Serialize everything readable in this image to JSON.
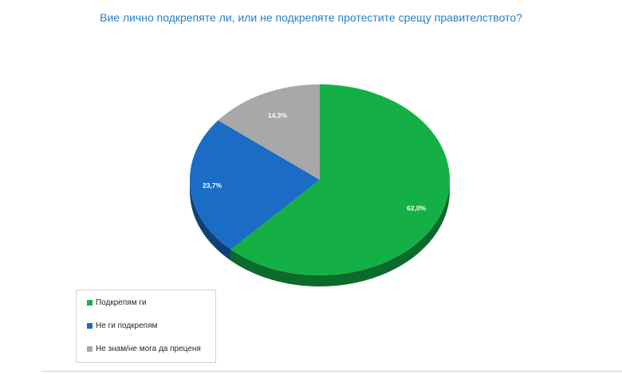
{
  "chart_data": {
    "type": "pie",
    "title": "Вие лично подкрепяте ли, или не подкрепяте протестите срещу правителството?",
    "slices": [
      {
        "label": "Подкрепям ги",
        "value": 62.0,
        "value_label": "62,0%",
        "color": "#14b046"
      },
      {
        "label": "Не ги подкрепям",
        "value": 23.7,
        "value_label": "23,7%",
        "color": "#1a6cc4"
      },
      {
        "label": "Не знам/не мога да преценя",
        "value": 14.3,
        "value_label": "14,3%",
        "color": "#a8a8a8"
      }
    ],
    "legend_position": "bottom-left",
    "three_d": true
  }
}
